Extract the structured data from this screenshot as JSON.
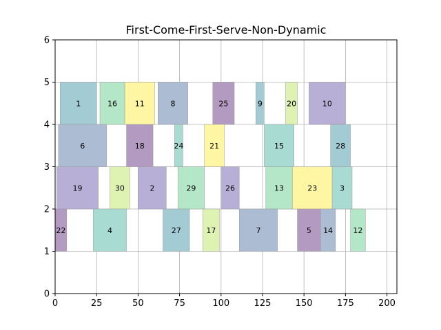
{
  "chart_data": {
    "type": "bar",
    "orientation": "horizontal-segments",
    "title": "First-Come-First-Serve-Non-Dynamic",
    "xlabel": "",
    "ylabel": "",
    "xlim": [
      0,
      206
    ],
    "ylim": [
      0,
      6
    ],
    "xticks": [
      0,
      25,
      50,
      75,
      100,
      125,
      150,
      175,
      200
    ],
    "yticks": [
      0,
      1,
      2,
      3,
      4,
      5,
      6
    ],
    "grid": true,
    "legend": "none",
    "rows": [
      1,
      2,
      3,
      4
    ],
    "segments": [
      {
        "label": "1",
        "row": 4,
        "start": 3,
        "end": 25,
        "color": "#a3cbd3"
      },
      {
        "label": "16",
        "row": 4,
        "start": 27,
        "end": 42,
        "color": "#b4e6c8"
      },
      {
        "label": "11",
        "row": 4,
        "start": 42,
        "end": 60,
        "color": "#fef6a3"
      },
      {
        "label": "8",
        "row": 4,
        "start": 62,
        "end": 80,
        "color": "#abbcd3"
      },
      {
        "label": "25",
        "row": 4,
        "start": 95,
        "end": 108,
        "color": "#b39ac0"
      },
      {
        "label": "9",
        "row": 4,
        "start": 121,
        "end": 126,
        "color": "#a3cbd3"
      },
      {
        "label": "20",
        "row": 4,
        "start": 139,
        "end": 146,
        "color": "#def3b2"
      },
      {
        "label": "10",
        "row": 4,
        "start": 153,
        "end": 175,
        "color": "#b8afd6"
      },
      {
        "label": "6",
        "row": 3,
        "start": 2,
        "end": 31,
        "color": "#abbcd3"
      },
      {
        "label": "18",
        "row": 3,
        "start": 43,
        "end": 59,
        "color": "#b39ac0"
      },
      {
        "label": "24",
        "row": 3,
        "start": 72,
        "end": 77,
        "color": "#a8dcd2"
      },
      {
        "label": "21",
        "row": 3,
        "start": 90,
        "end": 102,
        "color": "#fef6a3"
      },
      {
        "label": "15",
        "row": 3,
        "start": 126,
        "end": 144,
        "color": "#a8dcd2"
      },
      {
        "label": "28",
        "row": 3,
        "start": 166,
        "end": 178,
        "color": "#a3cbd3"
      },
      {
        "label": "19",
        "row": 2,
        "start": 1,
        "end": 26,
        "color": "#b8afd6"
      },
      {
        "label": "30",
        "row": 2,
        "start": 33,
        "end": 45,
        "color": "#def3b2"
      },
      {
        "label": "2",
        "row": 2,
        "start": 50,
        "end": 67,
        "color": "#b8afd6"
      },
      {
        "label": "29",
        "row": 2,
        "start": 74,
        "end": 90,
        "color": "#b4e6c8"
      },
      {
        "label": "26",
        "row": 2,
        "start": 100,
        "end": 111,
        "color": "#b8afd6"
      },
      {
        "label": "13",
        "row": 2,
        "start": 127,
        "end": 143,
        "color": "#b4e6c8"
      },
      {
        "label": "23",
        "row": 2,
        "start": 143,
        "end": 167,
        "color": "#fef6a3"
      },
      {
        "label": "3",
        "row": 2,
        "start": 167,
        "end": 179,
        "color": "#a8dcd2"
      },
      {
        "label": "22",
        "row": 1,
        "start": 0,
        "end": 7,
        "color": "#b39ac0"
      },
      {
        "label": "4",
        "row": 1,
        "start": 23,
        "end": 43,
        "color": "#a8dcd2"
      },
      {
        "label": "27",
        "row": 1,
        "start": 65,
        "end": 81,
        "color": "#a3cbd3"
      },
      {
        "label": "17",
        "row": 1,
        "start": 89,
        "end": 99,
        "color": "#def3b2"
      },
      {
        "label": "7",
        "row": 1,
        "start": 111,
        "end": 134,
        "color": "#abbcd3"
      },
      {
        "label": "5",
        "row": 1,
        "start": 146,
        "end": 160,
        "color": "#b39ac0"
      },
      {
        "label": "14",
        "row": 1,
        "start": 160,
        "end": 169,
        "color": "#abbcd3"
      },
      {
        "label": "12",
        "row": 1,
        "start": 178,
        "end": 187,
        "color": "#b4e6c8"
      }
    ]
  }
}
